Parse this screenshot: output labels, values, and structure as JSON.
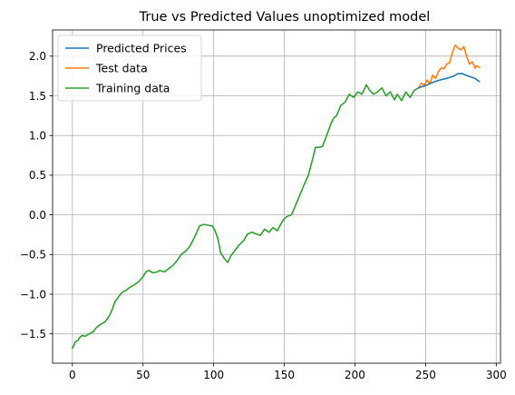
{
  "chart_data": {
    "type": "line",
    "title": "True vs Predicted Values unoptimized model",
    "xlabel": "",
    "ylabel": "",
    "xlim": [
      -14,
      303
    ],
    "ylim": [
      -1.87,
      2.33
    ],
    "xticks": [
      0,
      50,
      100,
      150,
      200,
      250,
      300
    ],
    "xtick_labels": [
      "0",
      "50",
      "100",
      "150",
      "200",
      "250",
      "300"
    ],
    "yticks": [
      -1.5,
      -1.0,
      -0.5,
      0.0,
      0.5,
      1.0,
      1.5,
      2.0
    ],
    "ytick_labels": [
      "−1.5",
      "−1.0",
      "−0.5",
      "0.0",
      "0.5",
      "1.0",
      "1.5",
      "2.0"
    ],
    "grid": true,
    "legend_position": "upper-left",
    "series": [
      {
        "name": "Predicted Prices",
        "color": "#1f77b4",
        "x": [
          245,
          250,
          255,
          260,
          265,
          270,
          273,
          276,
          280,
          285,
          288
        ],
        "y": [
          1.6,
          1.63,
          1.67,
          1.7,
          1.72,
          1.75,
          1.78,
          1.78,
          1.75,
          1.72,
          1.68
        ]
      },
      {
        "name": "Test data",
        "color": "#ff7f0e",
        "x": [
          245,
          247,
          249,
          251,
          253,
          255,
          257,
          259,
          261,
          263,
          265,
          267,
          269,
          271,
          273,
          275,
          277,
          279,
          281,
          283,
          285,
          286,
          288
        ],
        "y": [
          1.6,
          1.66,
          1.63,
          1.7,
          1.65,
          1.76,
          1.72,
          1.8,
          1.85,
          1.84,
          1.9,
          1.92,
          2.05,
          2.14,
          2.1,
          2.08,
          2.12,
          2.0,
          1.9,
          1.93,
          1.85,
          1.88,
          1.86
        ]
      },
      {
        "name": "Training data",
        "color": "#2ca02c",
        "x": [
          0,
          1,
          2,
          4,
          5,
          7,
          9,
          12,
          15,
          17,
          20,
          23,
          26,
          28,
          30,
          32,
          35,
          38,
          41,
          44,
          47,
          50,
          52,
          54,
          57,
          60,
          62,
          65,
          68,
          71,
          74,
          77,
          80,
          83,
          86,
          88,
          90,
          93,
          96,
          99,
          101,
          103,
          105,
          108,
          110,
          112,
          115,
          118,
          121,
          124,
          127,
          130,
          133,
          136,
          139,
          142,
          145,
          148,
          150,
          152,
          155,
          158,
          161,
          164,
          167,
          170,
          172,
          174,
          177,
          180,
          183,
          185,
          187,
          190,
          193,
          196,
          199,
          202,
          205,
          208,
          210,
          213,
          216,
          219,
          222,
          225,
          228,
          230,
          233,
          236,
          239,
          242,
          245
        ],
        "y": [
          -1.68,
          -1.65,
          -1.6,
          -1.58,
          -1.55,
          -1.52,
          -1.53,
          -1.5,
          -1.47,
          -1.42,
          -1.38,
          -1.35,
          -1.28,
          -1.2,
          -1.1,
          -1.05,
          -0.98,
          -0.95,
          -0.91,
          -0.88,
          -0.84,
          -0.78,
          -0.72,
          -0.7,
          -0.73,
          -0.72,
          -0.7,
          -0.72,
          -0.68,
          -0.64,
          -0.58,
          -0.5,
          -0.46,
          -0.4,
          -0.3,
          -0.22,
          -0.14,
          -0.12,
          -0.13,
          -0.14,
          -0.2,
          -0.3,
          -0.48,
          -0.56,
          -0.6,
          -0.52,
          -0.45,
          -0.38,
          -0.33,
          -0.24,
          -0.22,
          -0.24,
          -0.26,
          -0.18,
          -0.22,
          -0.16,
          -0.2,
          -0.1,
          -0.05,
          -0.02,
          0.0,
          0.12,
          0.25,
          0.38,
          0.5,
          0.7,
          0.85,
          0.85,
          0.86,
          1.0,
          1.15,
          1.22,
          1.25,
          1.38,
          1.42,
          1.52,
          1.48,
          1.55,
          1.52,
          1.64,
          1.58,
          1.52,
          1.55,
          1.6,
          1.5,
          1.55,
          1.45,
          1.52,
          1.44,
          1.55,
          1.48,
          1.57,
          1.6
        ]
      }
    ]
  }
}
